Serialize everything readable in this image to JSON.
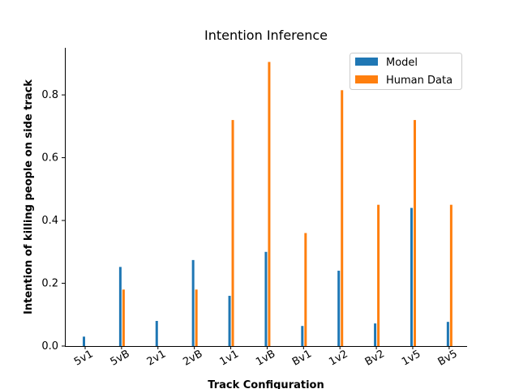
{
  "chart_data": {
    "type": "bar",
    "title": "Intention Inference",
    "xlabel": "Track Configuration",
    "ylabel": "Intention of killing people on side track",
    "categories": [
      "5v1",
      "5vB",
      "2v1",
      "2vB",
      "1v1",
      "1vB",
      "Bv1",
      "1v2",
      "Bv2",
      "1v5",
      "Bv5"
    ],
    "series": [
      {
        "name": "Model",
        "color": "#1f77b4",
        "values": [
          0.03,
          0.252,
          0.08,
          0.274,
          0.16,
          0.3,
          0.064,
          0.24,
          0.072,
          0.44,
          0.077
        ]
      },
      {
        "name": "Human Data",
        "color": "#ff7f0e",
        "values": [
          0.0,
          0.18,
          0.0,
          0.18,
          0.72,
          0.905,
          0.36,
          0.815,
          0.45,
          0.72,
          0.45
        ]
      }
    ],
    "ylim": [
      0,
      0.95
    ],
    "yticks": [
      "0.0",
      "0.2",
      "0.4",
      "0.6",
      "0.8"
    ],
    "legend_position": "top-right",
    "grid": false
  }
}
